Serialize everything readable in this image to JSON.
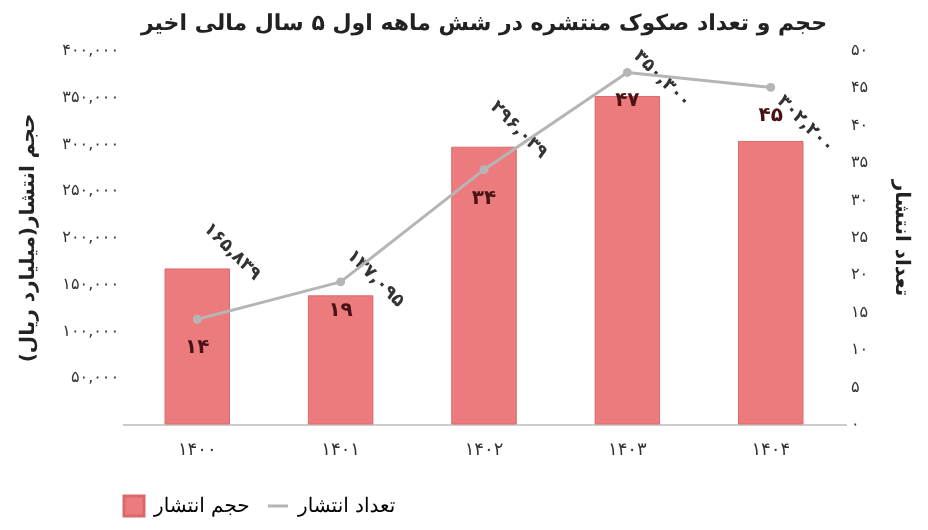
{
  "chart_data": {
    "type": "bar",
    "title": "حجم و تعداد صکوک منتشره در شش ماهه اول ۵ سال مالی اخیر",
    "ylabel": "حجم انتشار(میلیارد ریال)",
    "y2label": "تعداد انتشار",
    "categories": [
      "۱۴۰۰",
      "۱۴۰۱",
      "۱۴۰۲",
      "۱۴۰۳",
      "۱۴۰۴"
    ],
    "series": [
      {
        "name": "حجم انتشار",
        "color": "#ec7b7d",
        "values": [
          165839,
          137095,
          296039,
          350300,
          302200
        ],
        "value_labels": [
          "۱۶۵,۸۳۹",
          "۱۳۷,۰۹۵",
          "۲۹۶,۰۳۹",
          "۳۵۰,۳۰۰",
          "۳۰۲,۲۰۰"
        ]
      },
      {
        "name": "تعداد انتشار",
        "type": "line",
        "axis": "y2",
        "color": "#b5b5b5",
        "marker": "circle",
        "values": [
          14,
          19,
          34,
          47,
          45
        ],
        "value_labels": [
          "۱۴",
          "۱۹",
          "۳۴",
          "۴۷",
          "۴۵"
        ]
      }
    ],
    "ylim": [
      0,
      400000
    ],
    "yticks": [
      {
        "value": 50000,
        "label": "۵۰,۰۰۰"
      },
      {
        "value": 100000,
        "label": "۱۰۰,۰۰۰"
      },
      {
        "value": 150000,
        "label": "۱۵۰,۰۰۰"
      },
      {
        "value": 200000,
        "label": "۲۰۰,۰۰۰"
      },
      {
        "value": 250000,
        "label": "۲۵۰,۰۰۰"
      },
      {
        "value": 300000,
        "label": "۳۰۰,۰۰۰"
      },
      {
        "value": 350000,
        "label": "۳۵۰,۰۰۰"
      },
      {
        "value": 400000,
        "label": "۴۰۰,۰۰۰"
      }
    ],
    "y2lim": [
      0,
      50
    ],
    "y2ticks": [
      {
        "value": 0,
        "label": "۰"
      },
      {
        "value": 5,
        "label": "۵"
      },
      {
        "value": 10,
        "label": "۱۰"
      },
      {
        "value": 15,
        "label": "۱۵"
      },
      {
        "value": 20,
        "label": "۲۰"
      },
      {
        "value": 25,
        "label": "۲۵"
      },
      {
        "value": 30,
        "label": "۳۰"
      },
      {
        "value": 35,
        "label": "۳۵"
      },
      {
        "value": 40,
        "label": "۴۰"
      },
      {
        "value": 45,
        "label": "۴۵"
      },
      {
        "value": 50,
        "label": "۵۰"
      }
    ],
    "grid": false,
    "legend": "bottom"
  }
}
